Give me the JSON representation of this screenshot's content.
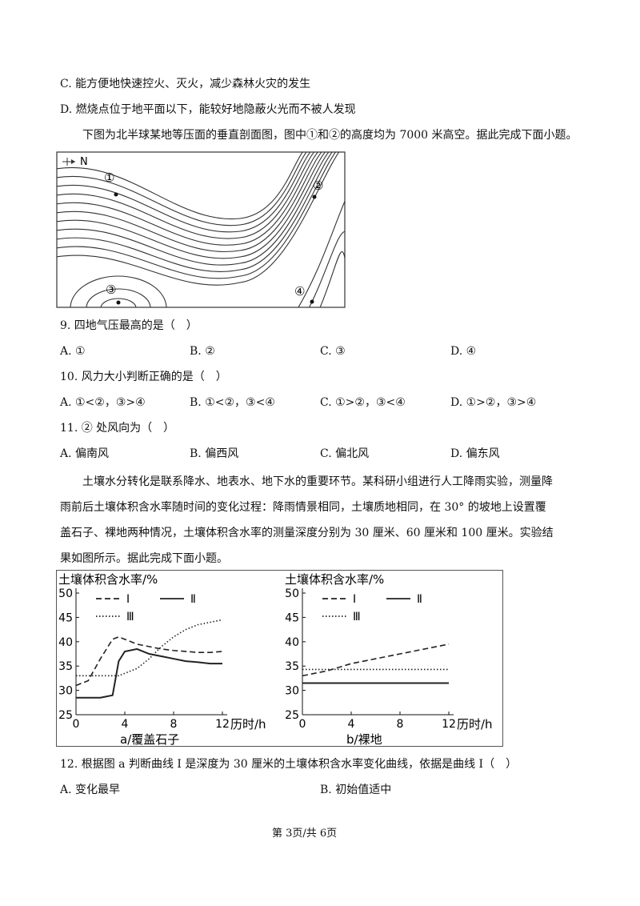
{
  "previous_options": [
    "C. 能方便地快速控火、灭火，减少森林火灾的发生",
    "D. 燃烧点位于地平面以下，能较好地隐蔽火光而不被人发现"
  ],
  "intro1": "下图为北半球某地等压面的垂直剖面图，图中①和②的高度均为 7000 米高空。据此完成下面小题。",
  "figure1": {
    "compass": "N",
    "points": [
      "①",
      "②",
      "③",
      "④"
    ]
  },
  "questions": [
    {
      "stem": "9. 四地气压最高的是（　）",
      "options": [
        "A. ①",
        "B. ②",
        "C. ③",
        "D. ④"
      ]
    },
    {
      "stem": "10. 风力大小判断正确的是（　）",
      "options": [
        "A. ①<②，③>④",
        "B. ①<②，③<④",
        "C. ①>②，③<④",
        "D. ①>②，③>④"
      ]
    },
    {
      "stem": "11. ② 处风向为（　）",
      "options": [
        "A. 偏南风",
        "B. 偏西风",
        "C. 偏北风",
        "D. 偏东风"
      ]
    }
  ],
  "intro2": "土壤水分转化是联系降水、地表水、地下水的重要环节。某科研小组进行人工降雨实验，测量降雨前后土壤体积含水率随时间的变化过程：降雨情景相同，土壤质地相同，在 30° 的坡地上设置覆盖石子、裸地两种情况，土壤体积含水率的测量深度分别为 30 厘米、60 厘米和 100 厘米。实验结果如图所示。据此完成下面小题。",
  "chart_data": [
    {
      "type": "line",
      "y_label": "土壤体积含水率/%",
      "x_label": "历时/h",
      "caption": "a/覆盖石子",
      "xlim": [
        0,
        12
      ],
      "ylim": [
        25,
        50
      ],
      "xticks": [
        0,
        4,
        8,
        12
      ],
      "yticks": [
        25,
        30,
        35,
        40,
        45,
        50
      ],
      "x": [
        0,
        1,
        2,
        3,
        3.5,
        4,
        5,
        6,
        7,
        8,
        9,
        10,
        11,
        12
      ],
      "series": [
        {
          "name": "Ⅰ",
          "color": "#222222",
          "style": "dashed",
          "values": [
            31,
            32,
            36.5,
            40.5,
            41,
            40.5,
            39.5,
            39,
            38.5,
            38.2,
            38,
            37.8,
            37.8,
            38
          ]
        },
        {
          "name": "Ⅱ",
          "color": "#222222",
          "style": "solid",
          "values": [
            28.5,
            28.5,
            28.5,
            29,
            36,
            38,
            38.5,
            37.5,
            37,
            36.5,
            36,
            35.8,
            35.5,
            35.5
          ]
        },
        {
          "name": "Ⅲ",
          "color": "#222222",
          "style": "dotted",
          "values": [
            33,
            33,
            33,
            33,
            33,
            33.5,
            34.5,
            36.5,
            39,
            41,
            42.5,
            43.5,
            44,
            44.5
          ]
        }
      ]
    },
    {
      "type": "line",
      "y_label": "土壤体积含水率/%",
      "x_label": "历时/h",
      "caption": "b/裸地",
      "xlim": [
        0,
        12
      ],
      "ylim": [
        25,
        50
      ],
      "xticks": [
        0,
        4,
        8,
        12
      ],
      "yticks": [
        25,
        30,
        35,
        40,
        45,
        50
      ],
      "x": [
        0,
        2,
        4,
        6,
        8,
        10,
        12
      ],
      "series": [
        {
          "name": "Ⅰ",
          "color": "#222222",
          "style": "dashed",
          "values": [
            33,
            34,
            35.5,
            36.5,
            37.5,
            38.5,
            39.5
          ]
        },
        {
          "name": "Ⅱ",
          "color": "#222222",
          "style": "solid",
          "values": [
            31.5,
            31.5,
            31.5,
            31.5,
            31.5,
            31.5,
            31.5
          ]
        },
        {
          "name": "Ⅲ",
          "color": "#222222",
          "style": "dotted",
          "values": [
            34.3,
            34.3,
            34.3,
            34.3,
            34.3,
            34.3,
            34.3
          ]
        }
      ]
    }
  ],
  "question12": {
    "stem": "12. 根据图 a 判断曲线 Ⅰ 是深度为 30 厘米的土壤体积含水率变化曲线，依据是曲线 Ⅰ（　）",
    "options": [
      "A. 变化最早",
      "B. 初始值适中"
    ]
  },
  "footer": "第 3页/共 6页"
}
